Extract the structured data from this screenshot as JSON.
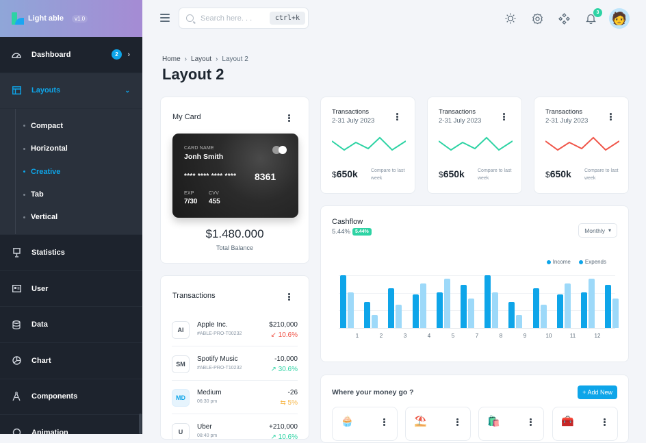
{
  "brand": {
    "name": "Light able",
    "version": "v1.0"
  },
  "sidebar": {
    "items": [
      {
        "label": "Dashboard",
        "icon": "dashboard-gauge-icon",
        "badge": "2"
      },
      {
        "label": "Layouts",
        "icon": "layout-icon",
        "active": true
      },
      {
        "label": "Statistics",
        "icon": "presentation-icon"
      },
      {
        "label": "User",
        "icon": "user-id-card-icon"
      },
      {
        "label": "Data",
        "icon": "database-icon"
      },
      {
        "label": "Chart",
        "icon": "pie-chart-icon"
      },
      {
        "label": "Components",
        "icon": "compass-tool-icon"
      },
      {
        "label": "Animation",
        "icon": "animation-icon"
      }
    ],
    "layouts_submenu": [
      {
        "label": "Compact"
      },
      {
        "label": "Horizontal"
      },
      {
        "label": "Creative",
        "active": true
      },
      {
        "label": "Tab"
      },
      {
        "label": "Vertical"
      }
    ]
  },
  "header": {
    "search_placeholder": "Search here. . .",
    "shortcut": "ctrl+k",
    "notifications_count": "3"
  },
  "breadcrumb": [
    "Home",
    "Layout",
    "Layout 2"
  ],
  "page_title": "Layout 2",
  "my_card": {
    "title": "My Card",
    "card_name_label": "CARD NAME",
    "card_name": "Jonh Smith",
    "masked_number": "**** **** **** ****",
    "last_digits": "8361",
    "exp_label": "EXP",
    "exp": "7/30",
    "cvv_label": "CVV",
    "cvv": "455",
    "balance": "$1.480.000",
    "balance_label": "Total Balance"
  },
  "transactions": {
    "title": "Transactions",
    "items": [
      {
        "initials": "AI",
        "name": "Apple Inc.",
        "sub": "#ABLE-PRO-T00232",
        "amount": "$210,000",
        "change": "↙ 10.6%",
        "color": "#f0564a"
      },
      {
        "initials": "SM",
        "name": "Spotify Music",
        "sub": "#ABLE-PRO-T10232",
        "amount": "-10,000",
        "change": "↗ 30.6%",
        "color": "#2ed3a4"
      },
      {
        "initials": "MD",
        "name": "Medium",
        "sub": "06:30 pm",
        "amount": "-26",
        "change": "⇆ 5%",
        "color": "#f7b84b"
      },
      {
        "initials": "U",
        "name": "Uber",
        "sub": "08:40 pm",
        "amount": "+210,000",
        "change": "↗ 10.6%",
        "color": "#2ed3a4"
      }
    ]
  },
  "stat_cards": [
    {
      "title": "Transactions",
      "period": "2-31 July 2023",
      "value": "650k",
      "currency": "$",
      "compare": "Compare to last week",
      "color": "#2ed3a4"
    },
    {
      "title": "Transactions",
      "period": "2-31 July 2023",
      "value": "650k",
      "currency": "$",
      "compare": "Compare to last week",
      "color": "#2ed3a4"
    },
    {
      "title": "Transactions",
      "period": "2-31 July 2023",
      "value": "650k",
      "currency": "$",
      "compare": "Compare to last week",
      "color": "#f0564a"
    }
  ],
  "cashflow": {
    "title": "Cashflow",
    "percent": "5.44%",
    "badge": "5.44%",
    "period_select": "Monthly",
    "legend": [
      "Income",
      "Expends"
    ]
  },
  "chart_data": {
    "type": "bar",
    "title": "Cashflow",
    "categories": [
      "1",
      "2",
      "3",
      "4",
      "5",
      "7",
      "8",
      "9",
      "10",
      "11",
      "12"
    ],
    "series": [
      {
        "name": "Income",
        "color": "#0ea5e9",
        "values": [
          100,
          50,
          75,
          64,
          67,
          82,
          100,
          50,
          75,
          64,
          67,
          82
        ]
      },
      {
        "name": "Expends",
        "color": "#9dd9f9",
        "values": [
          67,
          25,
          44,
          84,
          94,
          56,
          67,
          25,
          44,
          84,
          94,
          56
        ]
      }
    ],
    "note": "12 bar groups rendered; x-axis tick labels show 1,2,3,4,5,7,8,9,10,11,12",
    "legend_position": "top-right",
    "grid": true
  },
  "money_go": {
    "title": "Where your money go ?",
    "add_label": "+ Add New",
    "items": [
      {
        "emoji": "🧁",
        "icon": "food-icon"
      },
      {
        "emoji": "⛱️",
        "icon": "travel-umbrella-icon"
      },
      {
        "emoji": "🛍️",
        "icon": "shopping-bag-icon"
      },
      {
        "emoji": "🧰",
        "icon": "medical-kit-icon"
      }
    ]
  }
}
